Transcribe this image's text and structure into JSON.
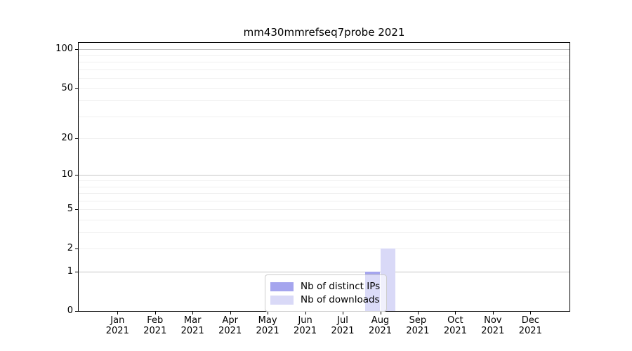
{
  "chart_data": {
    "type": "bar",
    "title": "mm430mmrefseq7probe 2021",
    "categories": [
      "Jan 2021",
      "Feb 2021",
      "Mar 2021",
      "Apr 2021",
      "May 2021",
      "Jun 2021",
      "Jul 2021",
      "Aug 2021",
      "Sep 2021",
      "Oct 2021",
      "Nov 2021",
      "Dec 2021"
    ],
    "series": [
      {
        "name": "Nb of distinct IPs",
        "color": "#a5a5ee",
        "values": [
          0,
          0,
          0,
          0,
          0,
          0,
          0,
          1,
          0,
          0,
          0,
          0
        ]
      },
      {
        "name": "Nb of downloads",
        "color": "#d9d9f7",
        "values": [
          0,
          0,
          0,
          0,
          0,
          0,
          0,
          2,
          0,
          0,
          0,
          0
        ]
      }
    ],
    "xlabel": "",
    "ylabel": "",
    "yscale": "log1p",
    "yticks": [
      0,
      1,
      2,
      5,
      10,
      20,
      50,
      100
    ],
    "ylim": [
      0,
      112.3
    ],
    "grid": {
      "on": true,
      "major_at": [
        1,
        10,
        100
      ],
      "minor_at": [
        2,
        3,
        4,
        5,
        6,
        7,
        8,
        9,
        20,
        30,
        40,
        50,
        60,
        70,
        80,
        90
      ]
    },
    "legend": {
      "position": "lower-center",
      "entries": [
        "Nb of distinct IPs",
        "Nb of downloads"
      ]
    },
    "colors": {
      "grid_major": "#c4c4c4",
      "grid_minor": "#efefef",
      "spine": "#000000",
      "legend_border": "#cccccc"
    }
  }
}
